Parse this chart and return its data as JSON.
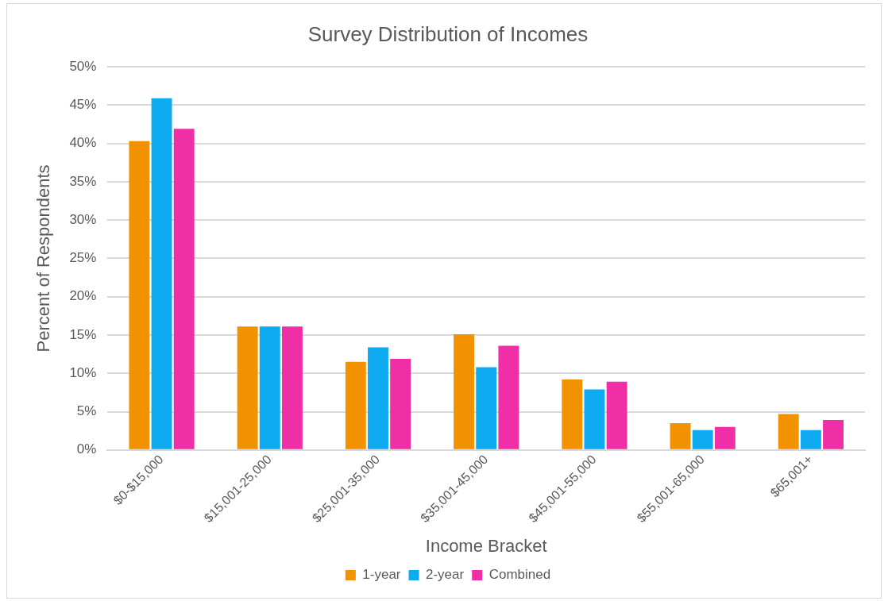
{
  "chart_data": {
    "type": "bar",
    "title": "Survey Distribution of Incomes",
    "xlabel": "Income Bracket",
    "ylabel": "Percent of Respondents",
    "categories": [
      "$0-$15,000",
      "$15,001-25,000",
      "$25,001-35,000",
      "$35,001-45,000",
      "$45,001-55,000",
      "$55,001-65,000",
      "$65,001+"
    ],
    "series": [
      {
        "name": "1-year",
        "color": "#f39200",
        "values": [
          40.3,
          16.1,
          11.5,
          15.1,
          9.2,
          3.5,
          4.7
        ]
      },
      {
        "name": "2-year",
        "color": "#0eaaf0",
        "values": [
          45.9,
          16.1,
          13.4,
          10.8,
          7.9,
          2.6,
          2.6
        ]
      },
      {
        "name": "Combined",
        "color": "#f02ea5",
        "values": [
          41.9,
          16.1,
          11.9,
          13.6,
          8.9,
          3.0,
          3.9
        ]
      }
    ],
    "ylim": [
      0,
      50
    ],
    "yticks": [
      {
        "value": 0,
        "label": "0%"
      },
      {
        "value": 5,
        "label": "5%"
      },
      {
        "value": 10,
        "label": "10%"
      },
      {
        "value": 15,
        "label": "15%"
      },
      {
        "value": 20,
        "label": "20%"
      },
      {
        "value": 25,
        "label": "25%"
      },
      {
        "value": 30,
        "label": "30%"
      },
      {
        "value": 35,
        "label": "35%"
      },
      {
        "value": 40,
        "label": "40%"
      },
      {
        "value": 45,
        "label": "45%"
      },
      {
        "value": 50,
        "label": "50%"
      }
    ],
    "grid": "y",
    "legend": "bottom"
  }
}
